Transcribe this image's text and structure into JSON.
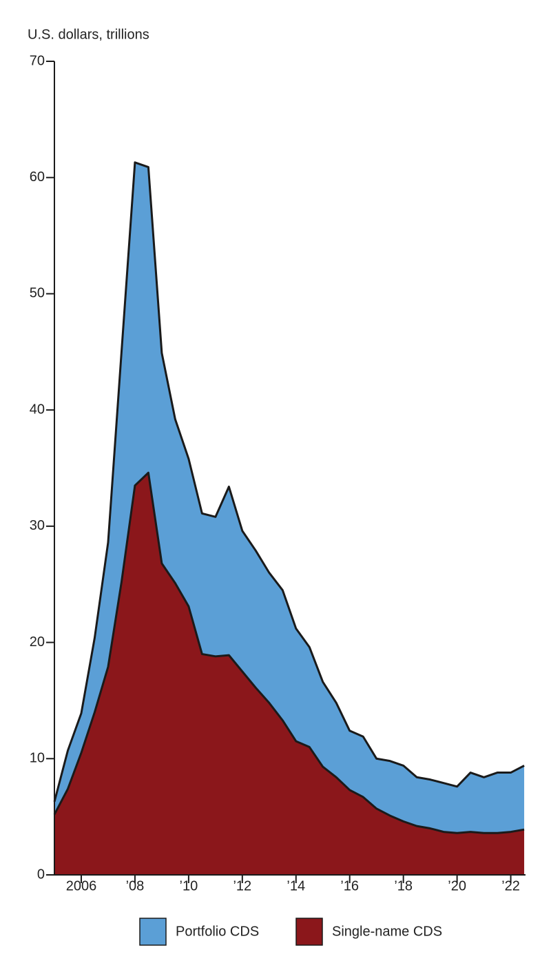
{
  "chart_data": {
    "type": "stacked-area",
    "y_label": "U.S. dollars, trillions",
    "x": [
      2005,
      2005.5,
      2006,
      2006.5,
      2007,
      2007.5,
      2008,
      2008.5,
      2009,
      2009.5,
      2010,
      2010.5,
      2011,
      2011.5,
      2012,
      2012.5,
      2013,
      2013.5,
      2014,
      2014.5,
      2015,
      2015.5,
      2016,
      2016.5,
      2017,
      2017.5,
      2018,
      2018.5,
      2019,
      2019.5,
      2020,
      2020.5,
      2021,
      2021.5,
      2022,
      2022.5
    ],
    "series": [
      {
        "name": "Portfolio CDS",
        "color": "#5b9fd6",
        "values": [
          1.1,
          3.3,
          3.4,
          6.4,
          10.7,
          19.8,
          27.8,
          26.3,
          18.1,
          14.1,
          12.7,
          12.1,
          12.0,
          14.5,
          12.1,
          11.8,
          11.2,
          11.2,
          9.7,
          8.6,
          7.3,
          6.4,
          5.1,
          5.2,
          4.3,
          4.7,
          4.8,
          4.2,
          4.2,
          4.2,
          4.0,
          5.1,
          4.8,
          5.2,
          5.1,
          5.5
        ]
      },
      {
        "name": "Single-name CDS",
        "color": "#8b171b",
        "values": [
          5.2,
          7.4,
          10.5,
          14.0,
          17.9,
          25.2,
          33.5,
          34.6,
          26.8,
          25.1,
          23.1,
          19.0,
          18.8,
          18.9,
          17.5,
          16.1,
          14.8,
          13.3,
          11.5,
          11.0,
          9.3,
          8.4,
          7.3,
          6.7,
          5.7,
          5.1,
          4.6,
          4.2,
          4.0,
          3.7,
          3.6,
          3.7,
          3.6,
          3.6,
          3.7,
          3.9
        ]
      }
    ],
    "xlim": [
      2005,
      2022.55
    ],
    "xticks": [
      2006,
      {
        "value": 2008,
        "label": "’08"
      },
      {
        "value": 2010,
        "label": "’10"
      },
      {
        "value": 2012,
        "label": "’12"
      },
      {
        "value": 2014,
        "label": "’14"
      },
      {
        "value": 2016,
        "label": "’16"
      },
      {
        "value": 2018,
        "label": "’18"
      },
      {
        "value": 2020,
        "label": "’20"
      },
      {
        "value": 2022,
        "label": "’22"
      }
    ],
    "ylim": [
      0,
      70
    ],
    "yticks": [
      0,
      10,
      20,
      30,
      40,
      50,
      60,
      70
    ],
    "grid": false
  }
}
